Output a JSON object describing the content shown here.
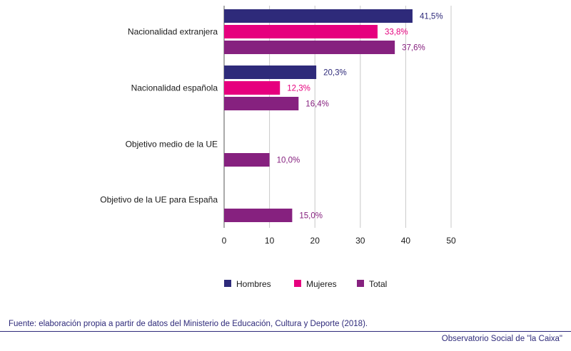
{
  "chart_data": {
    "type": "bar",
    "orientation": "horizontal",
    "categories": [
      "Nacionalidad extranjera",
      "Nacionalidad española",
      "Objetivo medio de la UE",
      "Objetivo de la UE para España"
    ],
    "series": [
      {
        "name": "Hombres",
        "color": "#2e2a7a",
        "values": [
          41.5,
          20.3,
          null,
          null
        ],
        "labels": [
          "41,5%",
          "20,3%",
          "",
          ""
        ]
      },
      {
        "name": "Mujeres",
        "color": "#e6007e",
        "values": [
          33.8,
          12.3,
          null,
          null
        ],
        "labels": [
          "33,8%",
          "12,3%",
          "",
          ""
        ]
      },
      {
        "name": "Total",
        "color": "#86217f",
        "values": [
          37.6,
          16.4,
          10.0,
          15.0
        ],
        "labels": [
          "37,6%",
          "16,4%",
          "10,0%",
          "15,0%"
        ]
      }
    ],
    "xticks": [
      "0",
      "10",
      "20",
      "30",
      "40",
      "50"
    ],
    "xlim": [
      0,
      50
    ],
    "grid": "vertical",
    "legend": "bottom"
  },
  "footer": {
    "source": "Fuente: elaboración propia a partir de datos del Ministerio de Educación, Cultura y Deporte (2018).",
    "brand": "Observatorio Social de \"la Caixa\""
  }
}
